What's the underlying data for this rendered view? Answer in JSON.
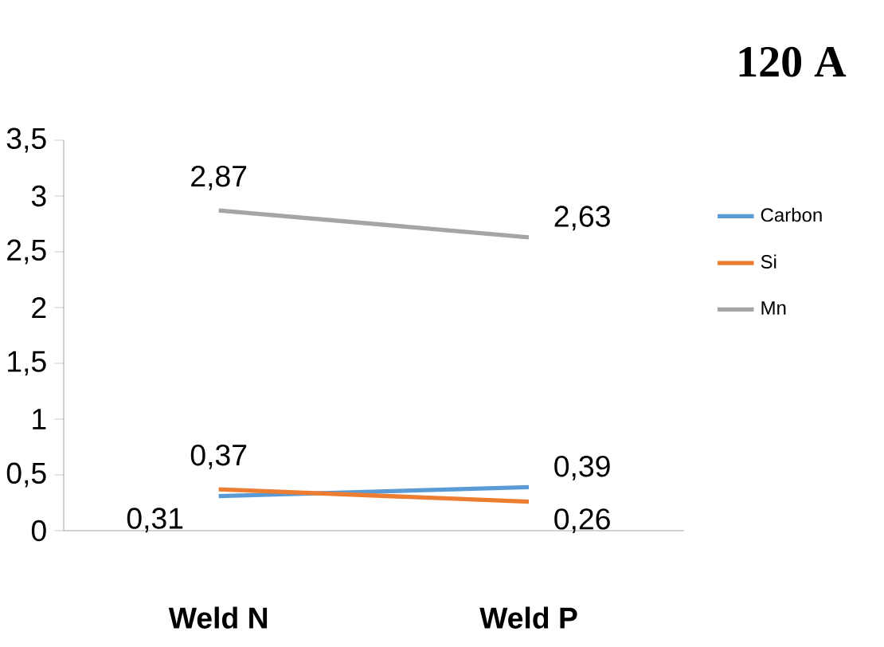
{
  "chart_data": {
    "type": "line",
    "title": "120 A",
    "categories": [
      "Weld N",
      "Weld P"
    ],
    "series": [
      {
        "name": "Carbon",
        "color": "#5b9bd5",
        "values": [
          0.31,
          0.39
        ],
        "value_labels": [
          "0,31",
          "0,39"
        ]
      },
      {
        "name": "Si",
        "color": "#ed7d31",
        "values": [
          0.37,
          0.26
        ],
        "value_labels": [
          "0,37",
          "0,26"
        ]
      },
      {
        "name": "Mn",
        "color": "#a5a5a5",
        "values": [
          2.87,
          2.63
        ],
        "value_labels": [
          "2,87",
          "2,63"
        ]
      }
    ],
    "ylim": [
      0,
      3.5
    ],
    "yticks": [
      0,
      {
        "value": 0.5,
        "label": "0,5"
      },
      1,
      {
        "value": 1.5,
        "label": "1,5"
      },
      2,
      {
        "value": 2.5,
        "label": "2,5"
      },
      3,
      {
        "value": 3.5,
        "label": "3,5"
      }
    ],
    "grid": false,
    "legend": "right"
  }
}
